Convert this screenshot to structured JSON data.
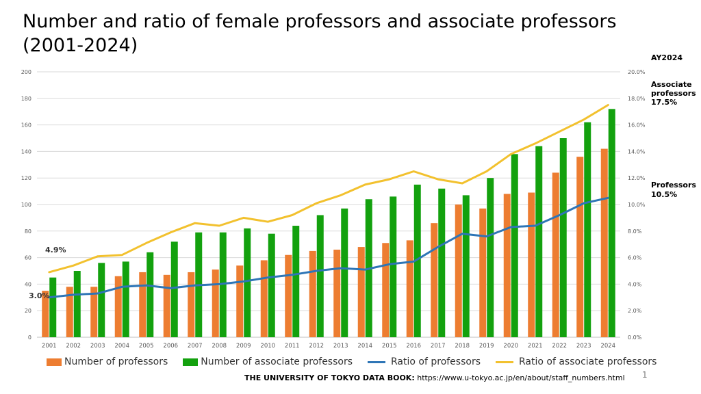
{
  "title": "Number and ratio of female professors and associate professors (2001-2024)",
  "source": {
    "label": "THE UNIVERSITY OF TOKYO DATA BOOK:",
    "url": "https://www.u-tokyo.ac.jp/en/about/staff_numbers.html"
  },
  "slide_number": "1",
  "annotations": {
    "ay": "AY2024",
    "assoc_label_1": "Associate",
    "assoc_label_2": "professors",
    "assoc_value": "17.5%",
    "prof_label": "Professors",
    "prof_value": "10.5%",
    "start_assoc_ratio": "4.9%",
    "start_prof_ratio": "3.0%"
  },
  "colors": {
    "professors_bar": "#ED7D31",
    "associate_bar": "#13A10E",
    "professors_ratio": "#2E75B6",
    "associate_ratio": "#F2C12E"
  },
  "chart_data": {
    "type": "bar",
    "title": "Number and ratio of female professors and associate professors (2001-2024)",
    "categories": [
      "2001",
      "2002",
      "2003",
      "2004",
      "2005",
      "2006",
      "2007",
      "2008",
      "2009",
      "2010",
      "2011",
      "2012",
      "2013",
      "2014",
      "2015",
      "2016",
      "2017",
      "2018",
      "2019",
      "2020",
      "2021",
      "2022",
      "2023",
      "2024"
    ],
    "y_left": {
      "min": 0,
      "max": 200,
      "step": 20,
      "ticks": [
        "0",
        "20",
        "40",
        "60",
        "80",
        "100",
        "120",
        "140",
        "160",
        "180",
        "200"
      ]
    },
    "y_right": {
      "min": 0,
      "max": 20,
      "step": 2,
      "ticks": [
        "0.0%",
        "2.0%",
        "4.0%",
        "6.0%",
        "8.0%",
        "10.0%",
        "12.0%",
        "14.0%",
        "16.0%",
        "18.0%",
        "20.0%"
      ]
    },
    "grid": true,
    "legend_position": "bottom",
    "series": [
      {
        "name": "Number of professors",
        "kind": "bar",
        "axis": "left",
        "values": [
          35,
          38,
          38,
          46,
          49,
          47,
          49,
          51,
          54,
          58,
          62,
          65,
          66,
          68,
          71,
          73,
          86,
          100,
          97,
          108,
          109,
          124,
          136,
          142
        ]
      },
      {
        "name": "Number of associate professors",
        "kind": "bar",
        "axis": "left",
        "values": [
          45,
          50,
          56,
          57,
          64,
          72,
          79,
          79,
          82,
          78,
          84,
          92,
          97,
          104,
          106,
          115,
          112,
          107,
          120,
          138,
          144,
          150,
          162,
          172
        ]
      },
      {
        "name": "Ratio of professors",
        "kind": "line",
        "axis": "right",
        "values": [
          3.0,
          3.2,
          3.3,
          3.8,
          3.9,
          3.7,
          3.9,
          4.0,
          4.2,
          4.5,
          4.7,
          5.0,
          5.2,
          5.1,
          5.5,
          5.7,
          6.8,
          7.8,
          7.6,
          8.3,
          8.4,
          9.2,
          10.1,
          10.5
        ]
      },
      {
        "name": "Ratio of associate professors",
        "kind": "line",
        "axis": "right",
        "values": [
          4.9,
          5.4,
          6.1,
          6.2,
          7.1,
          7.9,
          8.6,
          8.4,
          9.0,
          8.7,
          9.2,
          10.1,
          10.7,
          11.5,
          11.9,
          12.5,
          11.9,
          11.6,
          12.5,
          13.8,
          14.6,
          15.5,
          16.4,
          17.5
        ]
      }
    ]
  }
}
